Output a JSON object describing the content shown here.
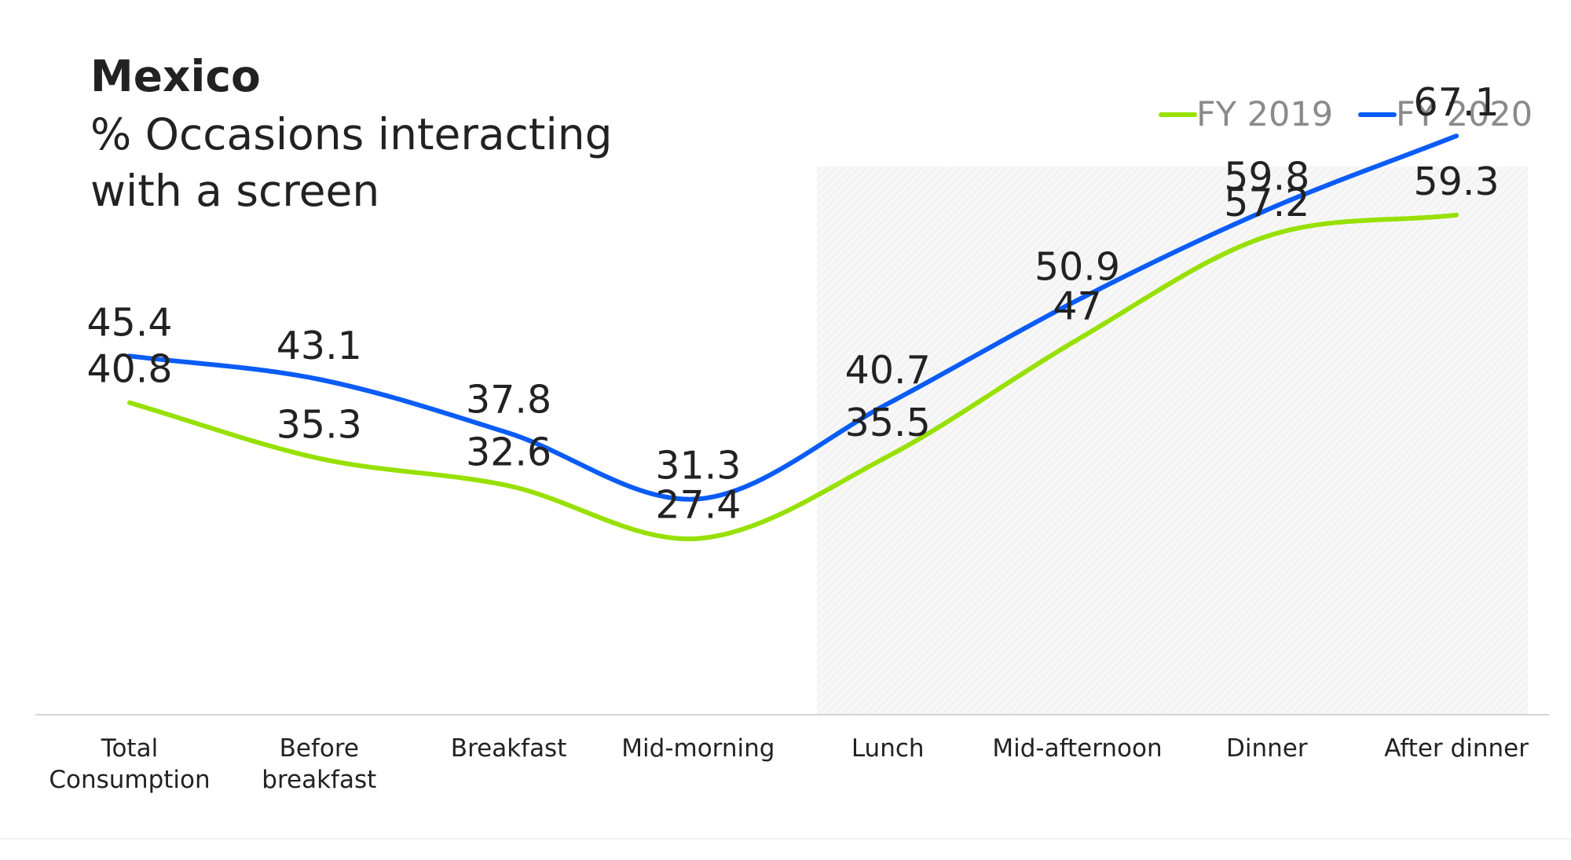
{
  "chart_data": {
    "type": "line",
    "title": "Mexico",
    "subtitle_lines": [
      "% Occasions interacting",
      "with a screen"
    ],
    "categories": [
      [
        "Total",
        "Consumption"
      ],
      [
        "Before",
        "breakfast"
      ],
      [
        "Breakfast"
      ],
      [
        "Mid-morning"
      ],
      [
        "Lunch"
      ],
      [
        "Mid-afternoon"
      ],
      [
        "Dinner"
      ],
      [
        "After dinner"
      ]
    ],
    "series": [
      {
        "name": "FY 2019",
        "color": "#97e000",
        "values": [
          40.8,
          35.3,
          32.6,
          27.4,
          35.5,
          47,
          57.2,
          59.3
        ],
        "labels": [
          "40.8",
          "35.3",
          "32.6",
          "27.4",
          "35.5",
          "47",
          "57.2",
          "59.3"
        ]
      },
      {
        "name": "FY 2020",
        "color": "#0a5cf5",
        "values": [
          45.4,
          43.1,
          37.8,
          31.3,
          40.7,
          50.9,
          59.8,
          67.1
        ],
        "labels": [
          "45.4",
          "43.1",
          "37.8",
          "31.3",
          "40.7",
          "50.9",
          "59.8",
          "67.1"
        ]
      }
    ],
    "highlight_range": [
      "Lunch",
      "After dinner"
    ],
    "legend_position": "top-right",
    "grid": false
  }
}
